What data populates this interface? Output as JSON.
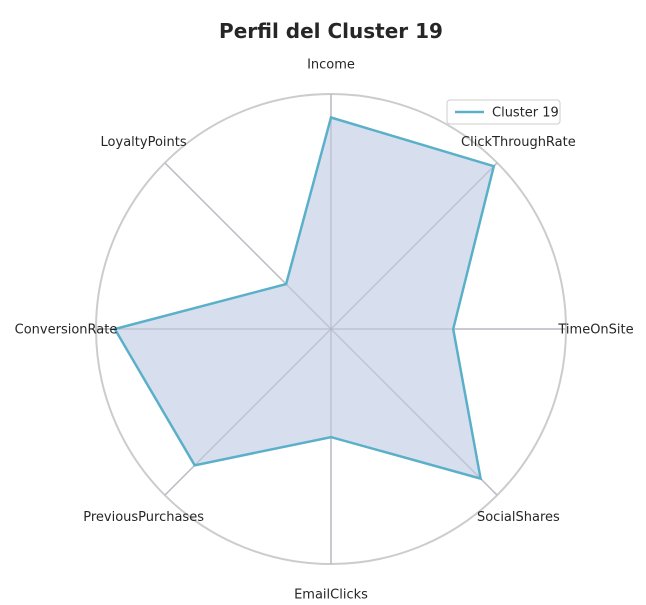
{
  "chart_data": {
    "type": "radar",
    "title": "Perfil del Cluster 19",
    "categories": [
      "Income",
      "ClickThroughRate",
      "TimeOnSite",
      "SocialShares",
      "EmailClicks",
      "PreviousPurchases",
      "ConversionRate",
      "LoyaltyPoints"
    ],
    "series": [
      {
        "name": "Cluster 19",
        "values": [
          0.9,
          0.98,
          0.52,
          0.9,
          0.46,
          0.82,
          0.92,
          0.27
        ],
        "line_color": "#5bb0c9",
        "fill_color": "#d3dbed"
      }
    ],
    "rlim": [
      0,
      1
    ],
    "grid": true,
    "legend_position": "top-right"
  }
}
